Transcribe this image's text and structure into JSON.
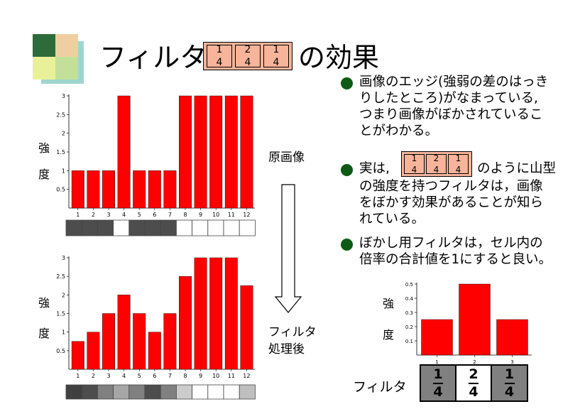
{
  "title": {
    "prefix": "フィルタ",
    "filter": [
      {
        "n": "1",
        "d": "4"
      },
      {
        "n": "2",
        "d": "4"
      },
      {
        "n": "1",
        "d": "4"
      }
    ],
    "suffix": "の効果"
  },
  "bullets": [
    {
      "lines": [
        "画像のエッジ(強弱の差のはっき",
        "りしたところ)がなまっている,",
        "つまり画像がぼかされているこ",
        "とがわかる。"
      ]
    },
    {
      "line1_before": "実は,",
      "line1_after": "のように山型",
      "lines": [
        "の強度を持つフィルタは，画像",
        "をぼかす効果があることが知ら",
        "れている。"
      ]
    },
    {
      "lines": [
        "ぼかし用フィルタは，セル内の",
        "倍率の合計値を1にすると良い。"
      ]
    }
  ],
  "labels": {
    "original": "原画像",
    "processed_line1": "フィルタ",
    "processed_line2": "処理後",
    "strength_top": "強",
    "strength_bottom": "度",
    "filter_label": "フィルタ"
  },
  "chart_data": [
    {
      "type": "bar",
      "categories": [
        "1",
        "2",
        "3",
        "4",
        "5",
        "6",
        "7",
        "8",
        "9",
        "10",
        "11",
        "12"
      ],
      "values": [
        1,
        1,
        1,
        3,
        1,
        1,
        1,
        3,
        3,
        3,
        3,
        3
      ],
      "ylim": [
        0,
        3
      ],
      "yticks": [
        "0.5",
        "1",
        "1.5",
        "2",
        "2.5",
        "3"
      ],
      "ylabel": "強度",
      "strip_gray": [
        0.3,
        0.3,
        0.3,
        1,
        0.3,
        0.3,
        0.3,
        1,
        1,
        1,
        1,
        1
      ]
    },
    {
      "type": "bar",
      "categories": [
        "1",
        "2",
        "3",
        "4",
        "5",
        "6",
        "7",
        "8",
        "9",
        "10",
        "11",
        "12"
      ],
      "values": [
        0.75,
        1,
        1.5,
        2,
        1.5,
        1,
        1.5,
        2.5,
        3,
        3,
        3,
        2.25
      ],
      "ylim": [
        0,
        3
      ],
      "yticks": [
        "0.5",
        "1",
        "1.5",
        "2",
        "2.5",
        "3"
      ],
      "ylabel": "強度",
      "strip_gray": [
        0.25,
        0.3,
        0.5,
        0.65,
        0.5,
        0.3,
        0.5,
        0.8,
        1,
        1,
        1,
        0.75
      ]
    },
    {
      "type": "bar",
      "categories": [
        "1",
        "2",
        "3"
      ],
      "values": [
        0.25,
        0.5,
        0.25
      ],
      "ylim": [
        0,
        0.5
      ],
      "yticks": [
        "0.1",
        "0.2",
        "0.3",
        "0.4",
        "0.5"
      ],
      "ylabel": "強度"
    }
  ],
  "bottom_filter": [
    {
      "n": "1",
      "d": "4",
      "bg": "#808080"
    },
    {
      "n": "2",
      "d": "4",
      "bg": "#ffffff"
    },
    {
      "n": "1",
      "d": "4",
      "bg": "#808080"
    }
  ],
  "colors": {
    "bar": "#ff0000",
    "bullet": "#0c5a14",
    "filter_cell": "#f7b49a"
  }
}
